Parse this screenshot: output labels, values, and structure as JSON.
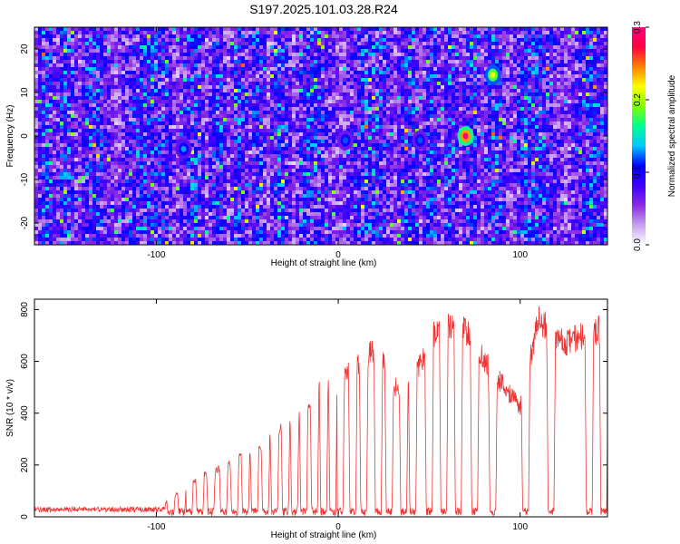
{
  "title": "S197.2025.101.03.28.R24",
  "chart_data": [
    {
      "type": "heatmap",
      "xlabel": "Height of straight line (km)",
      "ylabel": "Frequency (Hz)",
      "xlim": [
        -167,
        148
      ],
      "ylim": [
        -25,
        25
      ],
      "xticks": [
        -100,
        0,
        100
      ],
      "yticks": [
        -20,
        -10,
        0,
        10,
        20
      ],
      "colorbar": {
        "label": "Normalized spectral amplitude",
        "range": [
          0.0,
          0.3
        ],
        "ticks": [
          0.0,
          0.1,
          0.2,
          0.3
        ],
        "tick_labels": [
          "0.0",
          "0.1",
          "0.2",
          "0.3"
        ],
        "colors": [
          "#ffffff",
          "#c8a0f0",
          "#8a2be2",
          "#3c00ff",
          "#0000ff",
          "#00c8ff",
          "#00ff90",
          "#80ff00",
          "#ffff00",
          "#ff8000",
          "#ff0040",
          "#ff0080"
        ]
      },
      "hotspots": [
        {
          "x": 70,
          "y": 0,
          "value": 0.3
        },
        {
          "x": 85,
          "y": 14,
          "value": 0.22
        },
        {
          "x": -85,
          "y": -3,
          "value": 0.13
        },
        {
          "x": 45,
          "y": -1,
          "value": 0.12
        },
        {
          "x": 4,
          "y": -1,
          "value": 0.12
        }
      ]
    },
    {
      "type": "line",
      "xlabel": "Height of straight line (km)",
      "ylabel": "SNR (10 * v/v)",
      "xlim": [
        -167,
        148
      ],
      "ylim": [
        0,
        840
      ],
      "xticks": [
        -100,
        0,
        100
      ],
      "yticks": [
        0,
        200,
        400,
        600,
        800
      ],
      "series_color": "#ee3333",
      "envelope": [
        {
          "x": -167,
          "y": 30
        },
        {
          "x": -110,
          "y": 35
        },
        {
          "x": -95,
          "y": 60
        },
        {
          "x": -80,
          "y": 150
        },
        {
          "x": -60,
          "y": 220
        },
        {
          "x": -40,
          "y": 310
        },
        {
          "x": -25,
          "y": 400
        },
        {
          "x": -10,
          "y": 550
        },
        {
          "x": 5,
          "y": 600
        },
        {
          "x": 20,
          "y": 700
        },
        {
          "x": 35,
          "y": 500
        },
        {
          "x": 50,
          "y": 700
        },
        {
          "x": 55,
          "y": 820
        },
        {
          "x": 70,
          "y": 780
        },
        {
          "x": 85,
          "y": 600
        },
        {
          "x": 100,
          "y": 460
        },
        {
          "x": 110,
          "y": 820
        },
        {
          "x": 125,
          "y": 720
        },
        {
          "x": 135,
          "y": 760
        },
        {
          "x": 148,
          "y": 790
        }
      ],
      "dropouts_x": [
        -92,
        -86,
        -82,
        -76,
        -70,
        -63,
        -57,
        -51,
        -46,
        -40,
        -35,
        -29,
        -24,
        -19,
        -13,
        -8,
        -3,
        1,
        8,
        14,
        22,
        28,
        36,
        41,
        50,
        58,
        66,
        75,
        85,
        103,
        117,
        138,
        146
      ]
    }
  ]
}
